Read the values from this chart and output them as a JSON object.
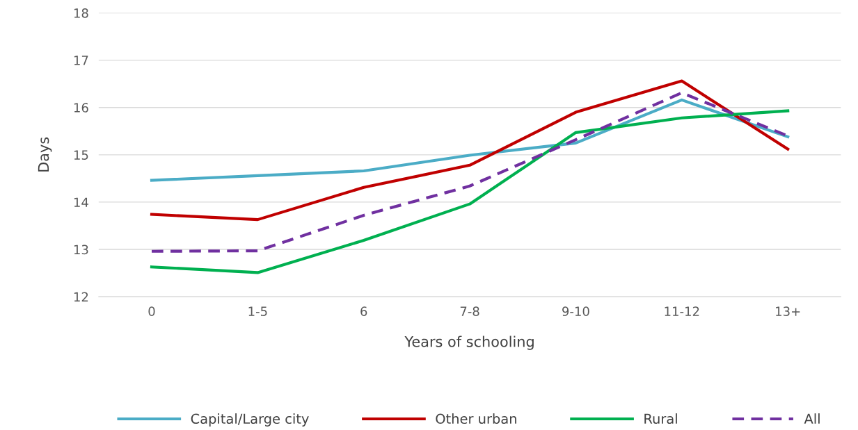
{
  "chart_data": {
    "type": "line",
    "xlabel": "Years of schooling",
    "ylabel": "Days",
    "categories": [
      "0",
      "1-5",
      "6",
      "7-8",
      "9-10",
      "11-12",
      "13+"
    ],
    "series": [
      {
        "name": "Capital/Large city",
        "color": "#4bacc6",
        "values": [
          14.46,
          14.56,
          14.66,
          14.99,
          15.25,
          16.16,
          15.38
        ]
      },
      {
        "name": "Other urban",
        "color": "#c00000",
        "values": [
          13.74,
          13.63,
          14.31,
          14.78,
          15.9,
          16.56,
          15.12
        ]
      },
      {
        "name": "Rural",
        "color": "#00b050",
        "values": [
          12.63,
          12.51,
          13.19,
          13.96,
          15.47,
          15.78,
          15.93
        ]
      },
      {
        "name": "All",
        "color": "#7030a0",
        "line_style": "dashed",
        "values": [
          12.96,
          12.97,
          13.72,
          14.34,
          15.32,
          16.31,
          15.4
        ]
      }
    ],
    "ylim": [
      12,
      18
    ],
    "yticks": [
      12,
      13,
      14,
      15,
      16,
      17,
      18
    ],
    "grid": "y",
    "legend": "bottom",
    "marker": "none",
    "line_style": "solid"
  }
}
